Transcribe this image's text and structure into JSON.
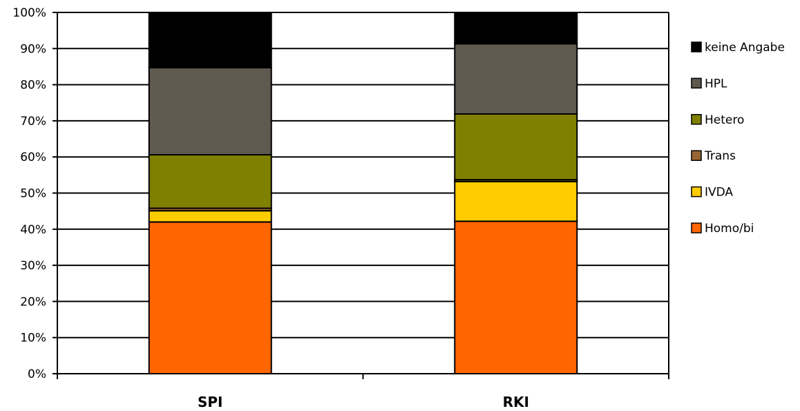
{
  "chart_data": {
    "type": "bar",
    "stacked": true,
    "percent": true,
    "categories": [
      "SPI",
      "RKI"
    ],
    "series": [
      {
        "name": "Homo/bi",
        "color": "#FF6600",
        "values": [
          42.0,
          42.2
        ]
      },
      {
        "name": "IVDA",
        "color": "#FFCC00",
        "values": [
          3.1,
          11.0
        ]
      },
      {
        "name": "Trans",
        "color": "#996633",
        "values": [
          0.7,
          0.5
        ]
      },
      {
        "name": "Hetero",
        "color": "#808000",
        "values": [
          14.8,
          18.2
        ]
      },
      {
        "name": "HPL",
        "color": "#5F5A50",
        "values": [
          24.1,
          19.4
        ]
      },
      {
        "name": "keine Angabe",
        "color": "#000000",
        "values": [
          15.3,
          8.7
        ]
      }
    ],
    "yticks": [
      "0%",
      "10%",
      "20%",
      "30%",
      "40%",
      "50%",
      "60%",
      "70%",
      "80%",
      "90%",
      "100%"
    ],
    "ylim": [
      0,
      100
    ],
    "grid": true,
    "legend": "right",
    "title": "",
    "xlabel": "",
    "ylabel": ""
  }
}
